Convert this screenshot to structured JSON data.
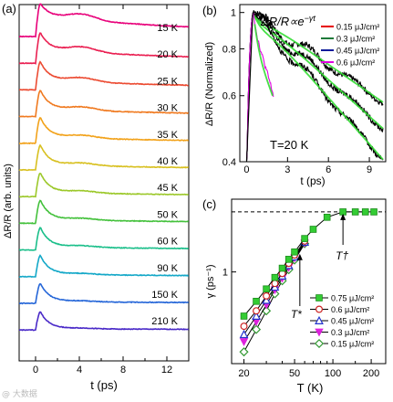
{
  "panels": {
    "a": {
      "label": "(a)",
      "type": "line",
      "xlabel": "t (ps)",
      "ylabel": "ΔR/R (arb. units)",
      "xticks": [
        "0",
        "4",
        "8",
        "12"
      ],
      "xlim": [
        -1.5,
        14
      ],
      "traces": [
        {
          "name": "15 K",
          "T": 15,
          "color": "#e8007a",
          "peak": 1.0,
          "rise": 0.15,
          "tail": 0.62,
          "bump": 0.18
        },
        {
          "name": "20 K",
          "T": 20,
          "color": "#ea2052",
          "peak": 0.92,
          "rise": 0.15,
          "tail": 0.45,
          "bump": 0.16
        },
        {
          "name": "25 K",
          "T": 25,
          "color": "#ec4b32",
          "peak": 0.85,
          "rise": 0.16,
          "tail": 0.35,
          "bump": 0.13
        },
        {
          "name": "30 K",
          "T": 30,
          "color": "#f07a20",
          "peak": 0.8,
          "rise": 0.17,
          "tail": 0.28,
          "bump": 0.11
        },
        {
          "name": "35 K",
          "T": 35,
          "color": "#f2a21a",
          "peak": 0.78,
          "rise": 0.17,
          "tail": 0.24,
          "bump": 0.09
        },
        {
          "name": "40 K",
          "T": 40,
          "color": "#d8c020",
          "peak": 0.75,
          "rise": 0.18,
          "tail": 0.21,
          "bump": 0.08
        },
        {
          "name": "45 K",
          "T": 45,
          "color": "#9cc82a",
          "peak": 0.72,
          "rise": 0.18,
          "tail": 0.18,
          "bump": 0.07
        },
        {
          "name": "50 K",
          "T": 50,
          "color": "#44c13c",
          "peak": 0.7,
          "rise": 0.18,
          "tail": 0.16,
          "bump": 0.06
        },
        {
          "name": "60 K",
          "T": 60,
          "color": "#1bbf8a",
          "peak": 0.68,
          "rise": 0.19,
          "tail": 0.14,
          "bump": 0.05
        },
        {
          "name": "90 K",
          "T": 90,
          "color": "#14a8c8",
          "peak": 0.64,
          "rise": 0.19,
          "tail": 0.11,
          "bump": 0.04
        },
        {
          "name": "150 K",
          "T": 150,
          "color": "#2566d8",
          "peak": 0.6,
          "rise": 0.2,
          "tail": 0.09,
          "bump": 0.03
        },
        {
          "name": "210 K",
          "T": 210,
          "color": "#4a2ac8",
          "peak": 0.55,
          "rise": 0.2,
          "tail": 0.08,
          "bump": 0.02
        }
      ]
    },
    "b": {
      "label": "(b)",
      "type": "line",
      "formula": "ΔR/R∝e",
      "formula_sup": "−γt",
      "annotation": "T=20 K",
      "xlabel": "t (ps)",
      "ylabel": "ΔR/R (Normalized)",
      "xticks": [
        0,
        3,
        6,
        9
      ],
      "xlim": [
        -0.5,
        10.2
      ],
      "yscale": "log",
      "ylim": [
        0.4,
        1.05
      ],
      "yticks": [
        0.4,
        0.6,
        0.8,
        1
      ],
      "yticklabels": [
        "0.4",
        "0.6",
        "0.8",
        "1"
      ],
      "legend": [
        {
          "name": "0.15  μJ/cm²",
          "color": "#e60000"
        },
        {
          "name": "0.3   μJ/cm²",
          "color": "#1f7a3a"
        },
        {
          "name": "0.45  μJ/cm²",
          "color": "#0a1a9a"
        },
        {
          "name": "0.6   μJ/cm²",
          "color": "#e000e0"
        }
      ],
      "fit_color": "#33dd33",
      "series": [
        {
          "fluence": "0.15",
          "gamma": 0.058,
          "tmax": 10
        },
        {
          "fluence": "0.3",
          "gamma": 0.075,
          "tmax": 10
        },
        {
          "fluence": "0.45",
          "gamma": 0.095,
          "tmax": 10
        },
        {
          "fluence": "0.6",
          "gamma": 0.3,
          "tmax": 2
        }
      ]
    },
    "c": {
      "label": "(c)",
      "type": "scatter",
      "xlabel": "T (K)",
      "ylabel": "γ (ps⁻¹)",
      "xscale": "log",
      "yscale": "log",
      "xlim": [
        16,
        260
      ],
      "ylim": [
        0.3,
        2.6
      ],
      "xticks": [
        20,
        50,
        100,
        200
      ],
      "xticklabels": [
        "20",
        "50",
        "100",
        "200"
      ],
      "ytick_label": "1",
      "dashed_level": 2.2,
      "tstar_label": "T*",
      "tdagger_label": "T†",
      "tstar_value": 55,
      "tdagger_value": 120,
      "legend": [
        {
          "name": "0.75  μJ/cm²",
          "marker": "square",
          "color": "#33cc33"
        },
        {
          "name": "0.6  μJ/cm²",
          "marker": "circle",
          "color": "#cc2222"
        },
        {
          "name": "0.45  μJ/cm²",
          "marker": "triangle",
          "color": "#2233cc"
        },
        {
          "name": "0.3  μJ/cm²",
          "marker": "down-triangle",
          "color": "#dd22dd"
        },
        {
          "name": "0.15  μJ/cm²",
          "marker": "diamond",
          "color": "#339933"
        }
      ],
      "series": [
        {
          "name": "0.75",
          "x": [
            20,
            25,
            30,
            35,
            40,
            45,
            50,
            60,
            70,
            90,
            120,
            150,
            180,
            210
          ],
          "y": [
            0.56,
            0.68,
            0.8,
            0.93,
            1.05,
            1.18,
            1.3,
            1.55,
            1.75,
            2.05,
            2.2,
            2.2,
            2.2,
            2.2
          ]
        },
        {
          "name": "0.6",
          "x": [
            20,
            25,
            30,
            35,
            40,
            45,
            50,
            60
          ],
          "y": [
            0.49,
            0.6,
            0.73,
            0.86,
            0.98,
            1.12,
            1.25,
            1.5
          ]
        },
        {
          "name": "0.45",
          "x": [
            20,
            25,
            30,
            35,
            40,
            45,
            50,
            60
          ],
          "y": [
            0.44,
            0.56,
            0.69,
            0.82,
            0.95,
            1.09,
            1.22,
            1.48
          ]
        },
        {
          "name": "0.3",
          "x": [
            20,
            25,
            30,
            35,
            40,
            45,
            50,
            60
          ],
          "y": [
            0.4,
            0.52,
            0.65,
            0.79,
            0.92,
            1.06,
            1.2,
            1.46
          ]
        },
        {
          "name": "0.15",
          "x": [
            20,
            25,
            30,
            35,
            40,
            45,
            50,
            60
          ],
          "y": [
            0.35,
            0.47,
            0.6,
            0.75,
            0.89,
            1.03,
            1.17,
            1.45
          ]
        }
      ]
    }
  },
  "watermark": "@ 大数据"
}
